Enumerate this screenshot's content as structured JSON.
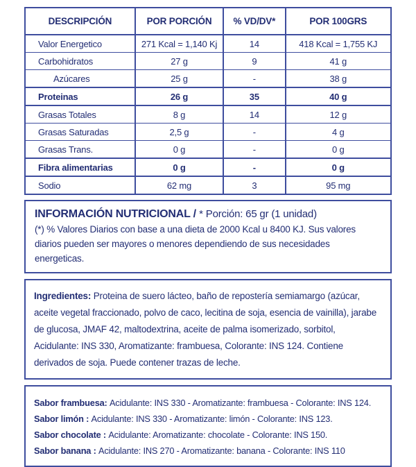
{
  "colors": {
    "ink": "#232e74",
    "line": "#3e4d9e",
    "background": "#ffffff"
  },
  "table": {
    "headers": [
      "DESCRIPCIÓN",
      "POR PORCIÓN",
      "% VD/DV*",
      "POR 100GRS"
    ],
    "rows": [
      {
        "label": "Valor Energetico",
        "portion": "271 Kcal = 1,140 Kj",
        "vd": "14",
        "per100": "418 Kcal = 1,755 KJ"
      },
      {
        "label": "Carbohidratos",
        "portion": "27 g",
        "vd": "9",
        "per100": "41 g"
      },
      {
        "label": "Azúcares",
        "portion": "25 g",
        "vd": "-",
        "per100": "38 g"
      },
      {
        "label": "Proteinas",
        "portion": "26 g",
        "vd": "35",
        "per100": "40 g"
      },
      {
        "label": "Grasas Totales",
        "portion": "8 g",
        "vd": "14",
        "per100": "12 g"
      },
      {
        "label": "Grasas Saturadas",
        "portion": "2,5 g",
        "vd": "-",
        "per100": "4 g"
      },
      {
        "label": "Grasas Trans.",
        "portion": "0 g",
        "vd": "-",
        "per100": "0 g"
      },
      {
        "label": "Fibra alimentarias",
        "portion": "0 g",
        "vd": "-",
        "per100": "0 g"
      },
      {
        "label": "Sodio",
        "portion": "62 mg",
        "vd": "3",
        "per100": "95 mg"
      }
    ]
  },
  "info": {
    "title_bold": "INFORMACIÓN NUTRICIONAL / ",
    "title_rest": "* Porción: 65 gr (1 unidad)",
    "note": "(*) % Valores Diarios con base a una dieta de 2000 Kcal u 8400 KJ. Sus valores diarios pueden ser mayores o menores dependiendo de sus necesidades energeticas."
  },
  "ingredients": {
    "label": "Ingredientes: ",
    "text": "Proteina de suero lácteo, baño de repostería semiamargo (azúcar, aceite vegetal fraccionado, polvo de caco, lecitina de soja, esencia de vainilla), jarabe de glucosa, JMAF 42, maltodextrina, aceite de palma isomerizado, sorbitol,  Acidulante: INS 330, Aromatizante: frambuesa, Colorante: INS 124. Contiene derivados de soja. Puede contener trazas de leche."
  },
  "flavors": [
    {
      "name": "Sabor frambuesa: ",
      "text": "Acidulante: INS 330 - Aromatizante: frambuesa - Colorante: INS 124."
    },
    {
      "name": "Sabor limón : ",
      "text": "Acidulante: INS 330 - Aromatizante: limón - Colorante: INS 123."
    },
    {
      "name": "Sabor chocolate : ",
      "text": "Acidulante:  Aromatizante: chocolate - Colorante: INS 150."
    },
    {
      "name": "Sabor banana : ",
      "text": "Acidulante: INS 270 - Aromatizante: banana - Colorante: INS 110"
    }
  ]
}
